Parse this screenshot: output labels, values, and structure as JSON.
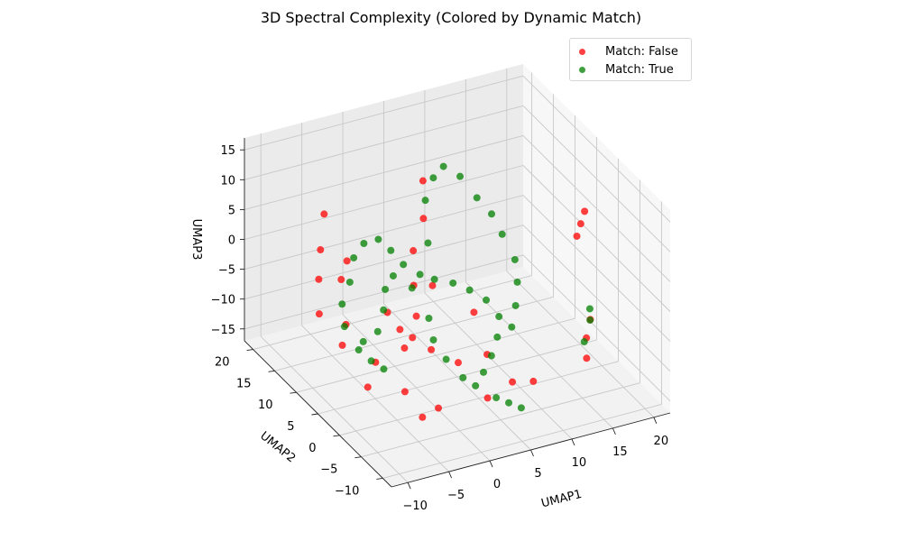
{
  "chart_data": {
    "type": "scatter",
    "dimensions": 3,
    "title": "3D Spectral Complexity (Colored by Dynamic Match)",
    "xlabel": "UMAP1",
    "ylabel": "UMAP2",
    "zlabel": "UMAP3",
    "xlim": [
      -12,
      22
    ],
    "ylim": [
      -12,
      22
    ],
    "zlim": [
      -17,
      17
    ],
    "x_ticks": [
      -10,
      -5,
      0,
      5,
      10,
      15,
      20
    ],
    "y_ticks": [
      -10,
      -5,
      0,
      5,
      10,
      15,
      20
    ],
    "z_ticks": [
      -15,
      -10,
      -5,
      0,
      5,
      10,
      15
    ],
    "grid": true,
    "legend_position": "top-right",
    "series": [
      {
        "name": "Match: False",
        "color": "#ff0000",
        "alpha": 0.75,
        "points": [
          [
            -8.0,
            12.0,
            4.0
          ],
          [
            -6.5,
            14.0,
            8.0
          ],
          [
            -9.0,
            10.5,
            0.5
          ],
          [
            -10.0,
            8.5,
            -3.5
          ],
          [
            -7.0,
            8.0,
            -6.0
          ],
          [
            -8.5,
            6.0,
            -7.5
          ],
          [
            -5.5,
            4.0,
            -10.0
          ],
          [
            -7.5,
            2.0,
            -12.0
          ],
          [
            -3.5,
            1.0,
            -13.5
          ],
          [
            -1.0,
            -2.0,
            -15.0
          ],
          [
            -4.0,
            -4.0,
            -14.0
          ],
          [
            -2.5,
            3.0,
            -8.0
          ],
          [
            0.0,
            5.0,
            -5.0
          ],
          [
            1.0,
            7.5,
            -2.0
          ],
          [
            2.0,
            9.5,
            2.0
          ],
          [
            3.5,
            10.0,
            6.5
          ],
          [
            4.5,
            12.0,
            11.0
          ],
          [
            6.0,
            0.0,
            -10.0
          ],
          [
            7.5,
            -3.0,
            -13.0
          ],
          [
            9.0,
            -5.0,
            -12.0
          ],
          [
            -3.0,
            6.0,
            -4.0
          ],
          [
            -2.0,
            5.0,
            -6.5
          ],
          [
            -1.0,
            4.0,
            -7.5
          ],
          [
            0.5,
            2.5,
            -9.0
          ],
          [
            3.0,
            1.0,
            -11.0
          ],
          [
            6.5,
            4.0,
            -6.0
          ],
          [
            -6.0,
            11.0,
            -1.0
          ],
          [
            -4.5,
            12.5,
            0.5
          ],
          [
            5.0,
            -2.0,
            -15.5
          ],
          [
            2.5,
            6.0,
            -1.5
          ],
          [
            16.0,
            -4.0,
            -8.0
          ],
          [
            17.0,
            -3.0,
            -6.0
          ],
          [
            15.5,
            -5.0,
            -10.5
          ],
          [
            18.0,
            2.0,
            4.0
          ],
          [
            19.0,
            3.0,
            5.0
          ],
          [
            20.0,
            4.0,
            6.0
          ]
        ]
      },
      {
        "name": "Match: True",
        "color": "#008000",
        "alpha": 0.75,
        "points": [
          [
            -6.0,
            9.0,
            0.0
          ],
          [
            -5.0,
            10.0,
            3.0
          ],
          [
            -3.5,
            10.5,
            4.5
          ],
          [
            -2.0,
            10.0,
            5.0
          ],
          [
            -1.0,
            9.0,
            3.5
          ],
          [
            0.0,
            8.0,
            1.5
          ],
          [
            1.5,
            7.0,
            0.0
          ],
          [
            3.0,
            6.5,
            -1.0
          ],
          [
            5.0,
            6.0,
            -2.0
          ],
          [
            6.5,
            5.0,
            -3.0
          ],
          [
            8.0,
            4.0,
            -4.5
          ],
          [
            8.5,
            2.0,
            -6.0
          ],
          [
            7.5,
            0.5,
            -8.0
          ],
          [
            6.0,
            -1.0,
            -9.5
          ],
          [
            4.5,
            -2.0,
            -11.0
          ],
          [
            3.0,
            -3.0,
            -12.0
          ],
          [
            2.0,
            -2.0,
            -11.0
          ],
          [
            1.0,
            0.0,
            -9.0
          ],
          [
            0.5,
            2.0,
            -7.0
          ],
          [
            1.0,
            4.0,
            -5.0
          ],
          [
            3.0,
            8.0,
            4.0
          ],
          [
            4.0,
            10.5,
            9.0
          ],
          [
            5.5,
            11.5,
            11.5
          ],
          [
            7.0,
            12.0,
            12.5
          ],
          [
            8.5,
            11.0,
            11.0
          ],
          [
            9.5,
            9.0,
            8.5
          ],
          [
            10.5,
            7.5,
            6.5
          ],
          [
            11.0,
            6.0,
            4.0
          ],
          [
            11.5,
            4.0,
            1.0
          ],
          [
            11.0,
            2.5,
            -1.5
          ],
          [
            10.0,
            1.0,
            -4.0
          ],
          [
            9.0,
            0.0,
            -6.5
          ],
          [
            -8.0,
            7.0,
            -1.5
          ],
          [
            -8.5,
            5.5,
            -4.0
          ],
          [
            -7.0,
            4.0,
            -6.0
          ],
          [
            -5.5,
            3.5,
            -4.5
          ],
          [
            -4.0,
            5.0,
            -2.5
          ],
          [
            -3.0,
            6.5,
            -0.5
          ],
          [
            -1.5,
            7.5,
            0.5
          ],
          [
            0.0,
            6.0,
            -1.0
          ],
          [
            -6.5,
            6.0,
            -9.0
          ],
          [
            -5.5,
            5.0,
            -10.5
          ],
          [
            -4.5,
            4.0,
            -11.5
          ],
          [
            5.0,
            -4.0,
            -14.0
          ],
          [
            6.0,
            -5.0,
            -14.5
          ],
          [
            7.0,
            -6.0,
            -15.0
          ],
          [
            17.5,
            -2.0,
            -7.0
          ],
          [
            18.0,
            -1.0,
            -6.0
          ],
          [
            16.0,
            -3.5,
            -9.0
          ]
        ]
      }
    ]
  }
}
